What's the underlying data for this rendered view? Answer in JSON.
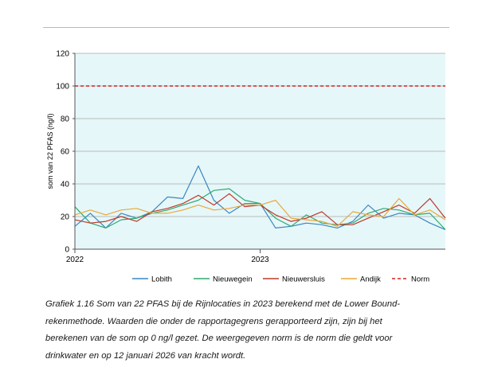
{
  "chart_data": {
    "type": "line",
    "title": "",
    "ylabel": "som van 22 PFAS (ng/l)",
    "xlabel": "",
    "ylim": [
      0,
      120
    ],
    "yticks": [
      0,
      20,
      40,
      60,
      80,
      100,
      120
    ],
    "x_tick_labels": [
      "2022",
      "2023"
    ],
    "grid": true,
    "legend_position": "bottom",
    "plot_background": "#e6f7f9",
    "x_points": 24,
    "series": [
      {
        "name": "Lobith",
        "color": "#3a86c2",
        "dash": false,
        "values": [
          14,
          22,
          13,
          22,
          19,
          23,
          32,
          31,
          51,
          30,
          22,
          28,
          28,
          13,
          14,
          16,
          15,
          13,
          17,
          27,
          19,
          22,
          21,
          16,
          12
        ]
      },
      {
        "name": "Nieuwegein",
        "color": "#2eaa6f",
        "dash": false,
        "values": [
          26,
          16,
          13,
          18,
          19,
          22,
          24,
          27,
          30,
          36,
          37,
          30,
          28,
          19,
          14,
          21,
          16,
          15,
          16,
          22,
          25,
          24,
          21,
          22,
          12
        ]
      },
      {
        "name": "Nieuwersluis",
        "color": "#c0392b",
        "dash": false,
        "values": [
          18,
          16,
          17,
          20,
          17,
          23,
          25,
          28,
          33,
          27,
          34,
          26,
          27,
          21,
          17,
          19,
          23,
          15,
          15,
          19,
          23,
          27,
          22,
          31,
          19
        ]
      },
      {
        "name": "Andijk",
        "color": "#e8a93a",
        "dash": false,
        "values": [
          21,
          24,
          21,
          24,
          25,
          22,
          22,
          24,
          27,
          24,
          25,
          27,
          27,
          30,
          19,
          18,
          17,
          14,
          23,
          21,
          20,
          31,
          21,
          24,
          18
        ]
      },
      {
        "name": "Norm",
        "color": "#d62020",
        "dash": true,
        "values": [
          100,
          100
        ]
      }
    ]
  },
  "caption": {
    "line1": "Grafiek 1.16 Som van 22 PFAS bij de Rijnlocaties in 2023 berekend met de Lower Bound-",
    "line2": "rekenmethode. Waarden die onder de rapportagegrens gerapporteerd zijn, zijn bij het",
    "line3": "berekenen van de som op 0 ng/l gezet. De weergegeven norm is de norm die geldt voor",
    "line4": "drinkwater en op 12 januari 2026 van kracht wordt."
  }
}
